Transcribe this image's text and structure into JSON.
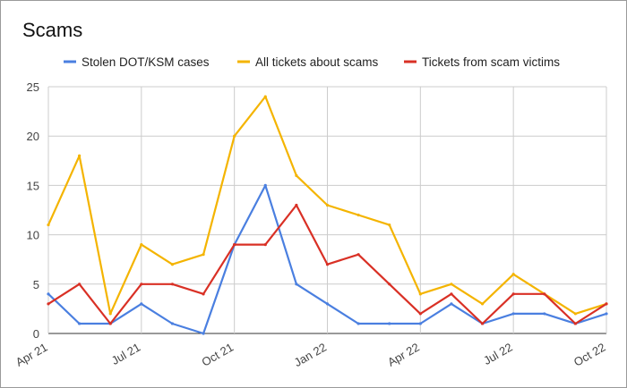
{
  "chart_data": {
    "type": "line",
    "title": "Scams",
    "xlabel": "",
    "ylabel": "",
    "ylim": [
      0,
      25
    ],
    "yticks": [
      0,
      5,
      10,
      15,
      20,
      25
    ],
    "x": [
      "2021-04",
      "2021-05",
      "2021-06",
      "2021-07",
      "2021-08",
      "2021-09",
      "2021-10",
      "2021-11",
      "2021-12",
      "2022-01",
      "2022-02",
      "2022-03",
      "2022-04",
      "2022-05",
      "2022-06",
      "2022-07",
      "2022-08",
      "2022-09",
      "2022-10"
    ],
    "xticks": [
      {
        "index": 0,
        "label": "Apr  21"
      },
      {
        "index": 3,
        "label": "Jul  21"
      },
      {
        "index": 6,
        "label": "Oct  21"
      },
      {
        "index": 9,
        "label": "Jan  22"
      },
      {
        "index": 12,
        "label": "Apr  22"
      },
      {
        "index": 15,
        "label": "Jul  22"
      },
      {
        "index": 18,
        "label": "Oct  22"
      }
    ],
    "grid": true,
    "legend_position": "top",
    "series": [
      {
        "name": "Stolen DOT/KSM cases",
        "color": "#4a7fe0",
        "values": [
          4,
          1,
          1,
          3,
          1,
          0,
          9,
          15,
          5,
          3,
          1,
          1,
          1,
          3,
          1,
          2,
          2,
          1,
          2
        ]
      },
      {
        "name": "All tickets about scams",
        "color": "#f4b400",
        "values": [
          11,
          18,
          2,
          9,
          7,
          8,
          20,
          24,
          16,
          13,
          12,
          11,
          4,
          5,
          3,
          6,
          4,
          2,
          3
        ]
      },
      {
        "name": "Tickets from scam victims",
        "color": "#d93025",
        "values": [
          3,
          5,
          1,
          5,
          5,
          4,
          9,
          9,
          13,
          7,
          8,
          5,
          2,
          4,
          1,
          4,
          4,
          1,
          3
        ]
      }
    ]
  }
}
